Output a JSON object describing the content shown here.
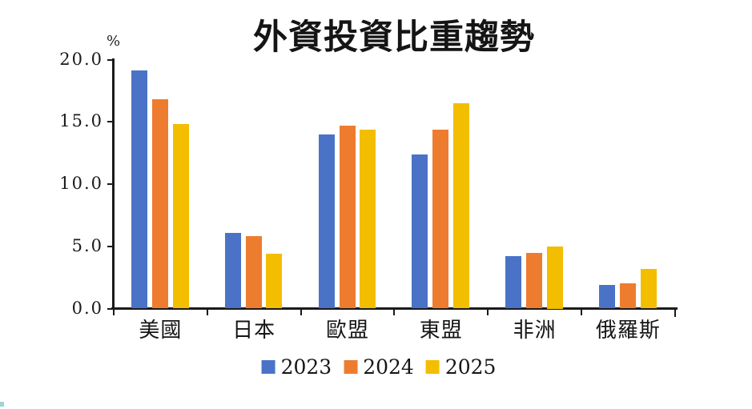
{
  "title": "外資投資比重趨勢",
  "y_axis": {
    "unit_label": "%",
    "tick_labels": [
      "0.0",
      "5.0",
      "10.0",
      "15.0",
      "20.0"
    ],
    "tick_values": [
      0,
      5,
      10,
      15,
      20
    ]
  },
  "legend": {
    "entries": [
      "2023",
      "2024",
      "2025"
    ]
  },
  "colors": {
    "series_2023": "#4a73c8",
    "series_2024": "#ee7c2f",
    "series_2025": "#f3bd00",
    "axis": "#1a1a1a"
  },
  "chart_data": {
    "type": "bar",
    "title": "外資投資比重趨勢",
    "xlabel": "",
    "ylabel": "%",
    "ylim": [
      0,
      20
    ],
    "ytick_step": 5,
    "grid": false,
    "legend_position": "bottom",
    "categories": [
      "美國",
      "日本",
      "歐盟",
      "東盟",
      "非洲",
      "俄羅斯"
    ],
    "series": [
      {
        "name": "2023",
        "color": "#4a73c8",
        "values": [
          19.1,
          6.1,
          14.0,
          12.4,
          4.2,
          1.9
        ]
      },
      {
        "name": "2024",
        "color": "#ee7c2f",
        "values": [
          16.8,
          5.8,
          14.7,
          14.4,
          4.5,
          2.0
        ]
      },
      {
        "name": "2025",
        "color": "#f3bd00",
        "values": [
          14.8,
          4.4,
          14.4,
          16.5,
          5.0,
          3.2
        ]
      }
    ]
  }
}
